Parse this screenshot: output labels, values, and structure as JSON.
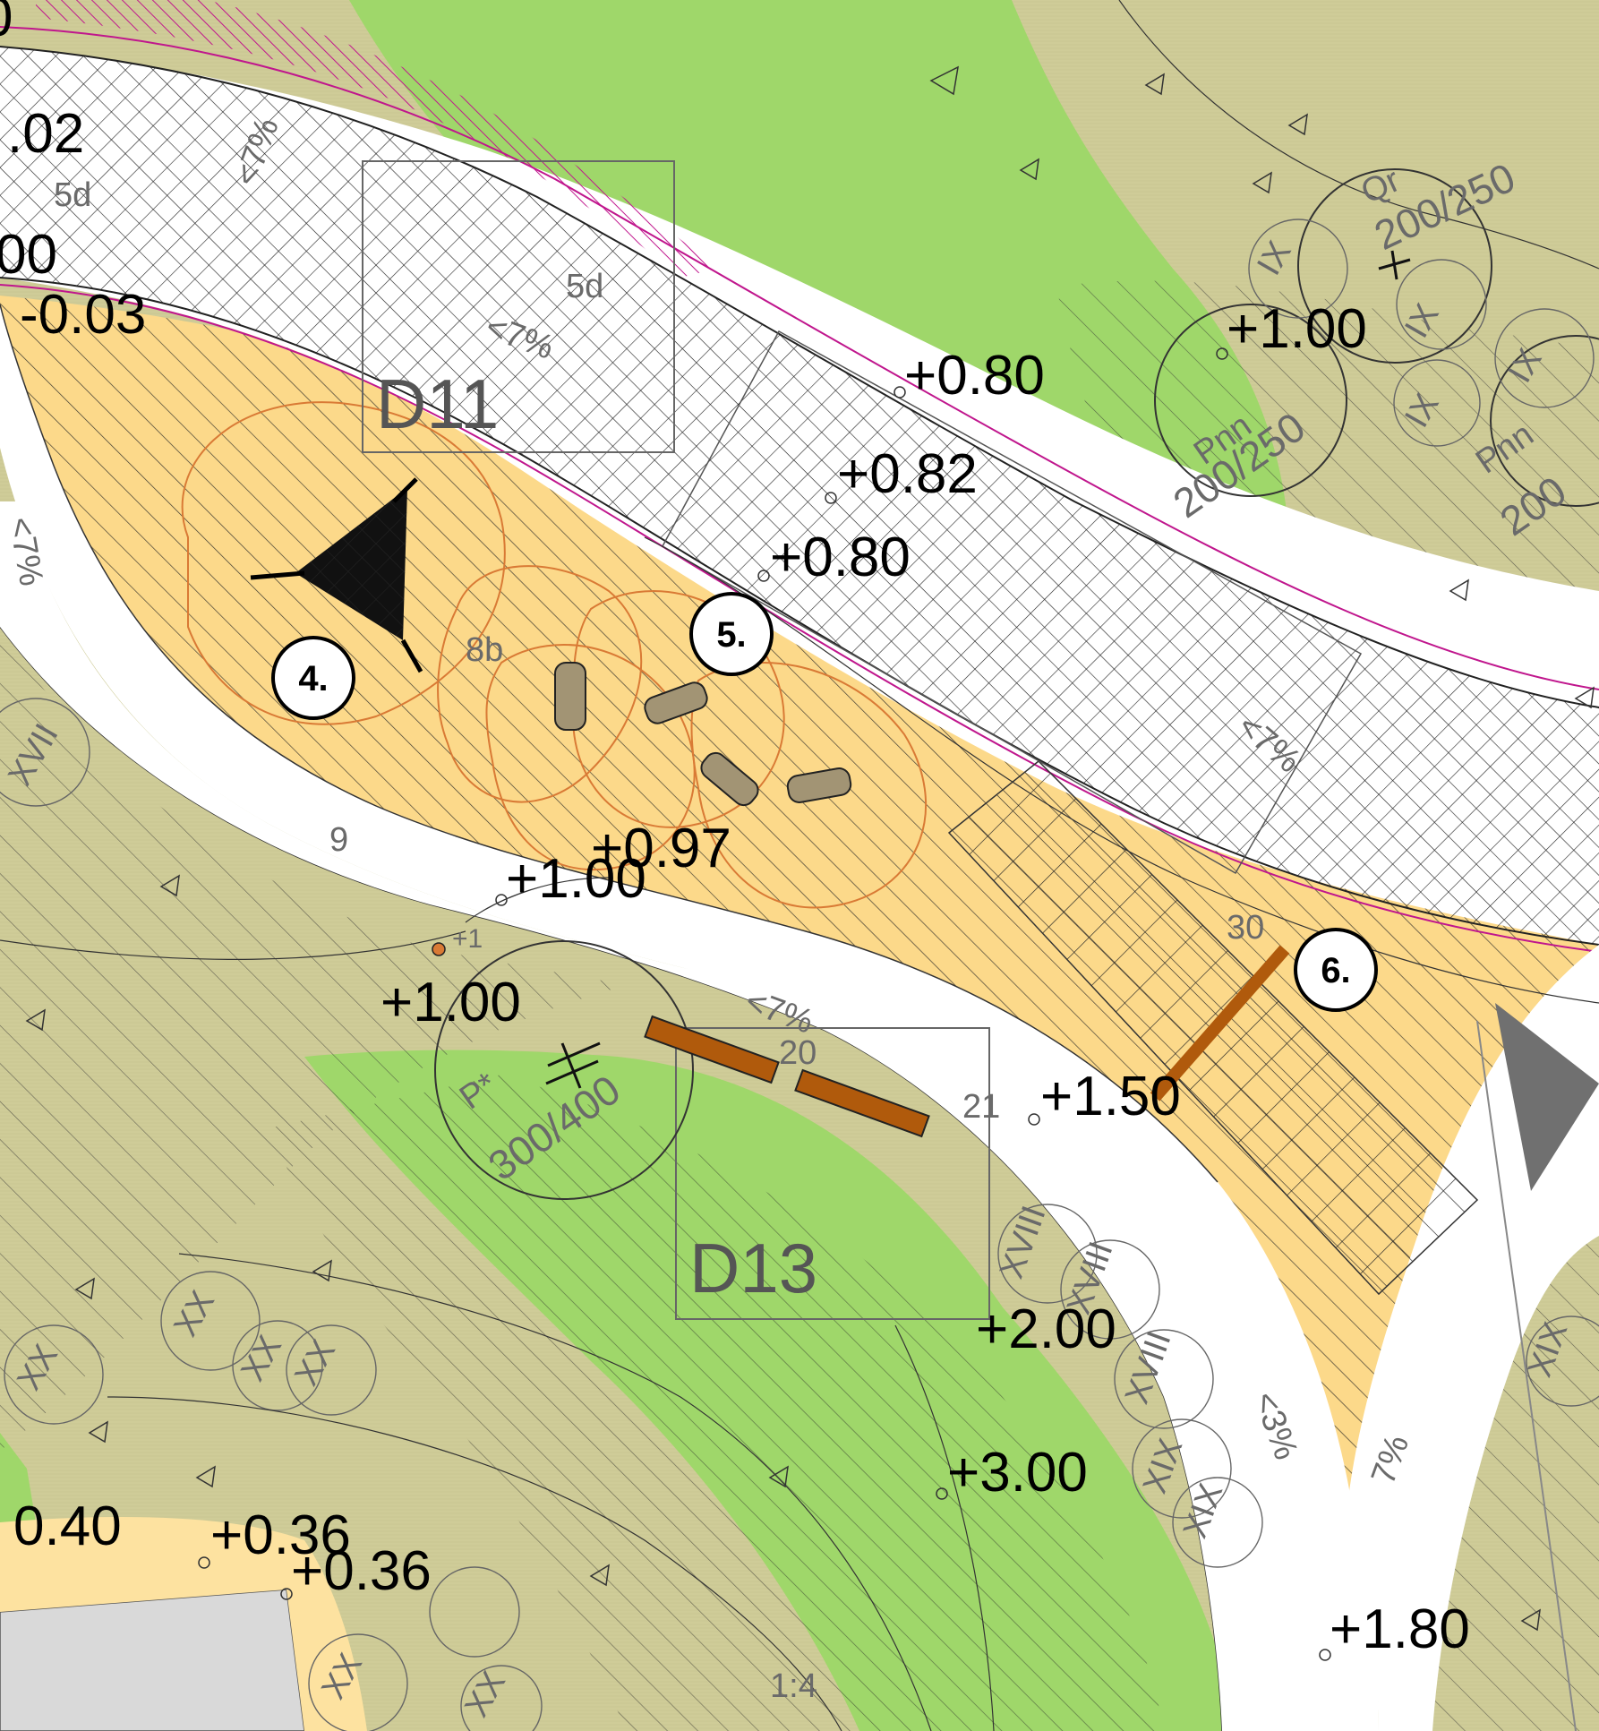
{
  "palette": {
    "lawn": "#cfcc98",
    "green": "#9fd76a",
    "sand": "#fcd98a",
    "sand_light": "#fde2a0",
    "path": "#ffffff",
    "building": "#d9d9d9",
    "hatch": "#222222",
    "orange": "#d97a35",
    "magenta": "#c0168d",
    "wood": "#b05a0c",
    "arrow": "#707070"
  },
  "detail_codes": [
    "D11",
    "D13"
  ],
  "callouts": [
    "4.",
    "5.",
    "6."
  ],
  "elevations": {
    "e_top_left_1": ".02",
    "e_top_left_2": "00",
    "e_left_1": "-0.03",
    "e_top_left_0": "0",
    "e_080_a": "+0.80",
    "e_082": "+0.82",
    "e_080_b": "+0.80",
    "e_100_tr": "+1.00",
    "e_097": "+0.97",
    "e_100_a": "+1.00",
    "e_100_b": "+1.00",
    "e_150": "+1.50",
    "e_200": "+2.00",
    "e_300": "+3.00",
    "e_040": "0.40",
    "e_036_a": "+0.36",
    "e_036_b": "+0.36",
    "e_180": "+1.80"
  },
  "faint_labels": {
    "area_8b": "8b",
    "area_9": "9",
    "area_5d_a": "5d",
    "area_5d_b": "5d",
    "area_20": "20",
    "area_21": "21",
    "area_30": "30",
    "scale_14": "1:4",
    "plus_1": "+1",
    "slope_7_a": "<7%",
    "slope_7_b": "<7%",
    "slope_7_c": "<7%",
    "slope_7_d": "<7%",
    "slope_7_e": "<7%",
    "slope_3": "<3%",
    "slope_7_f": "7%",
    "tree_qr": "Qr",
    "tree_qr_size": "200/250",
    "tree_pnn_a": "Pnn",
    "tree_pnn_a_size": "200/250",
    "tree_pnn_b": "Pnn",
    "tree_pnn_b_size": "200",
    "tree_p": "P*",
    "tree_p_size": "300/400",
    "roman_ix_1": "IX",
    "roman_ix_2": "IX",
    "roman_ix_3": "IX",
    "roman_ix_4": "IX",
    "roman_xvii": "XVII",
    "roman_xviii_1": "XVIII",
    "roman_xviii_2": "XVIII",
    "roman_xviii_3": "XVIII",
    "roman_xix_1": "XIX",
    "roman_xix_2": "XIX",
    "roman_xix_3": "XIX",
    "roman_xx_1": "XX",
    "roman_xx_2": "XX",
    "roman_xx_3": "XX",
    "roman_xx_4": "XX",
    "roman_xx_5": "XX",
    "roman_xx_6": "XX"
  }
}
